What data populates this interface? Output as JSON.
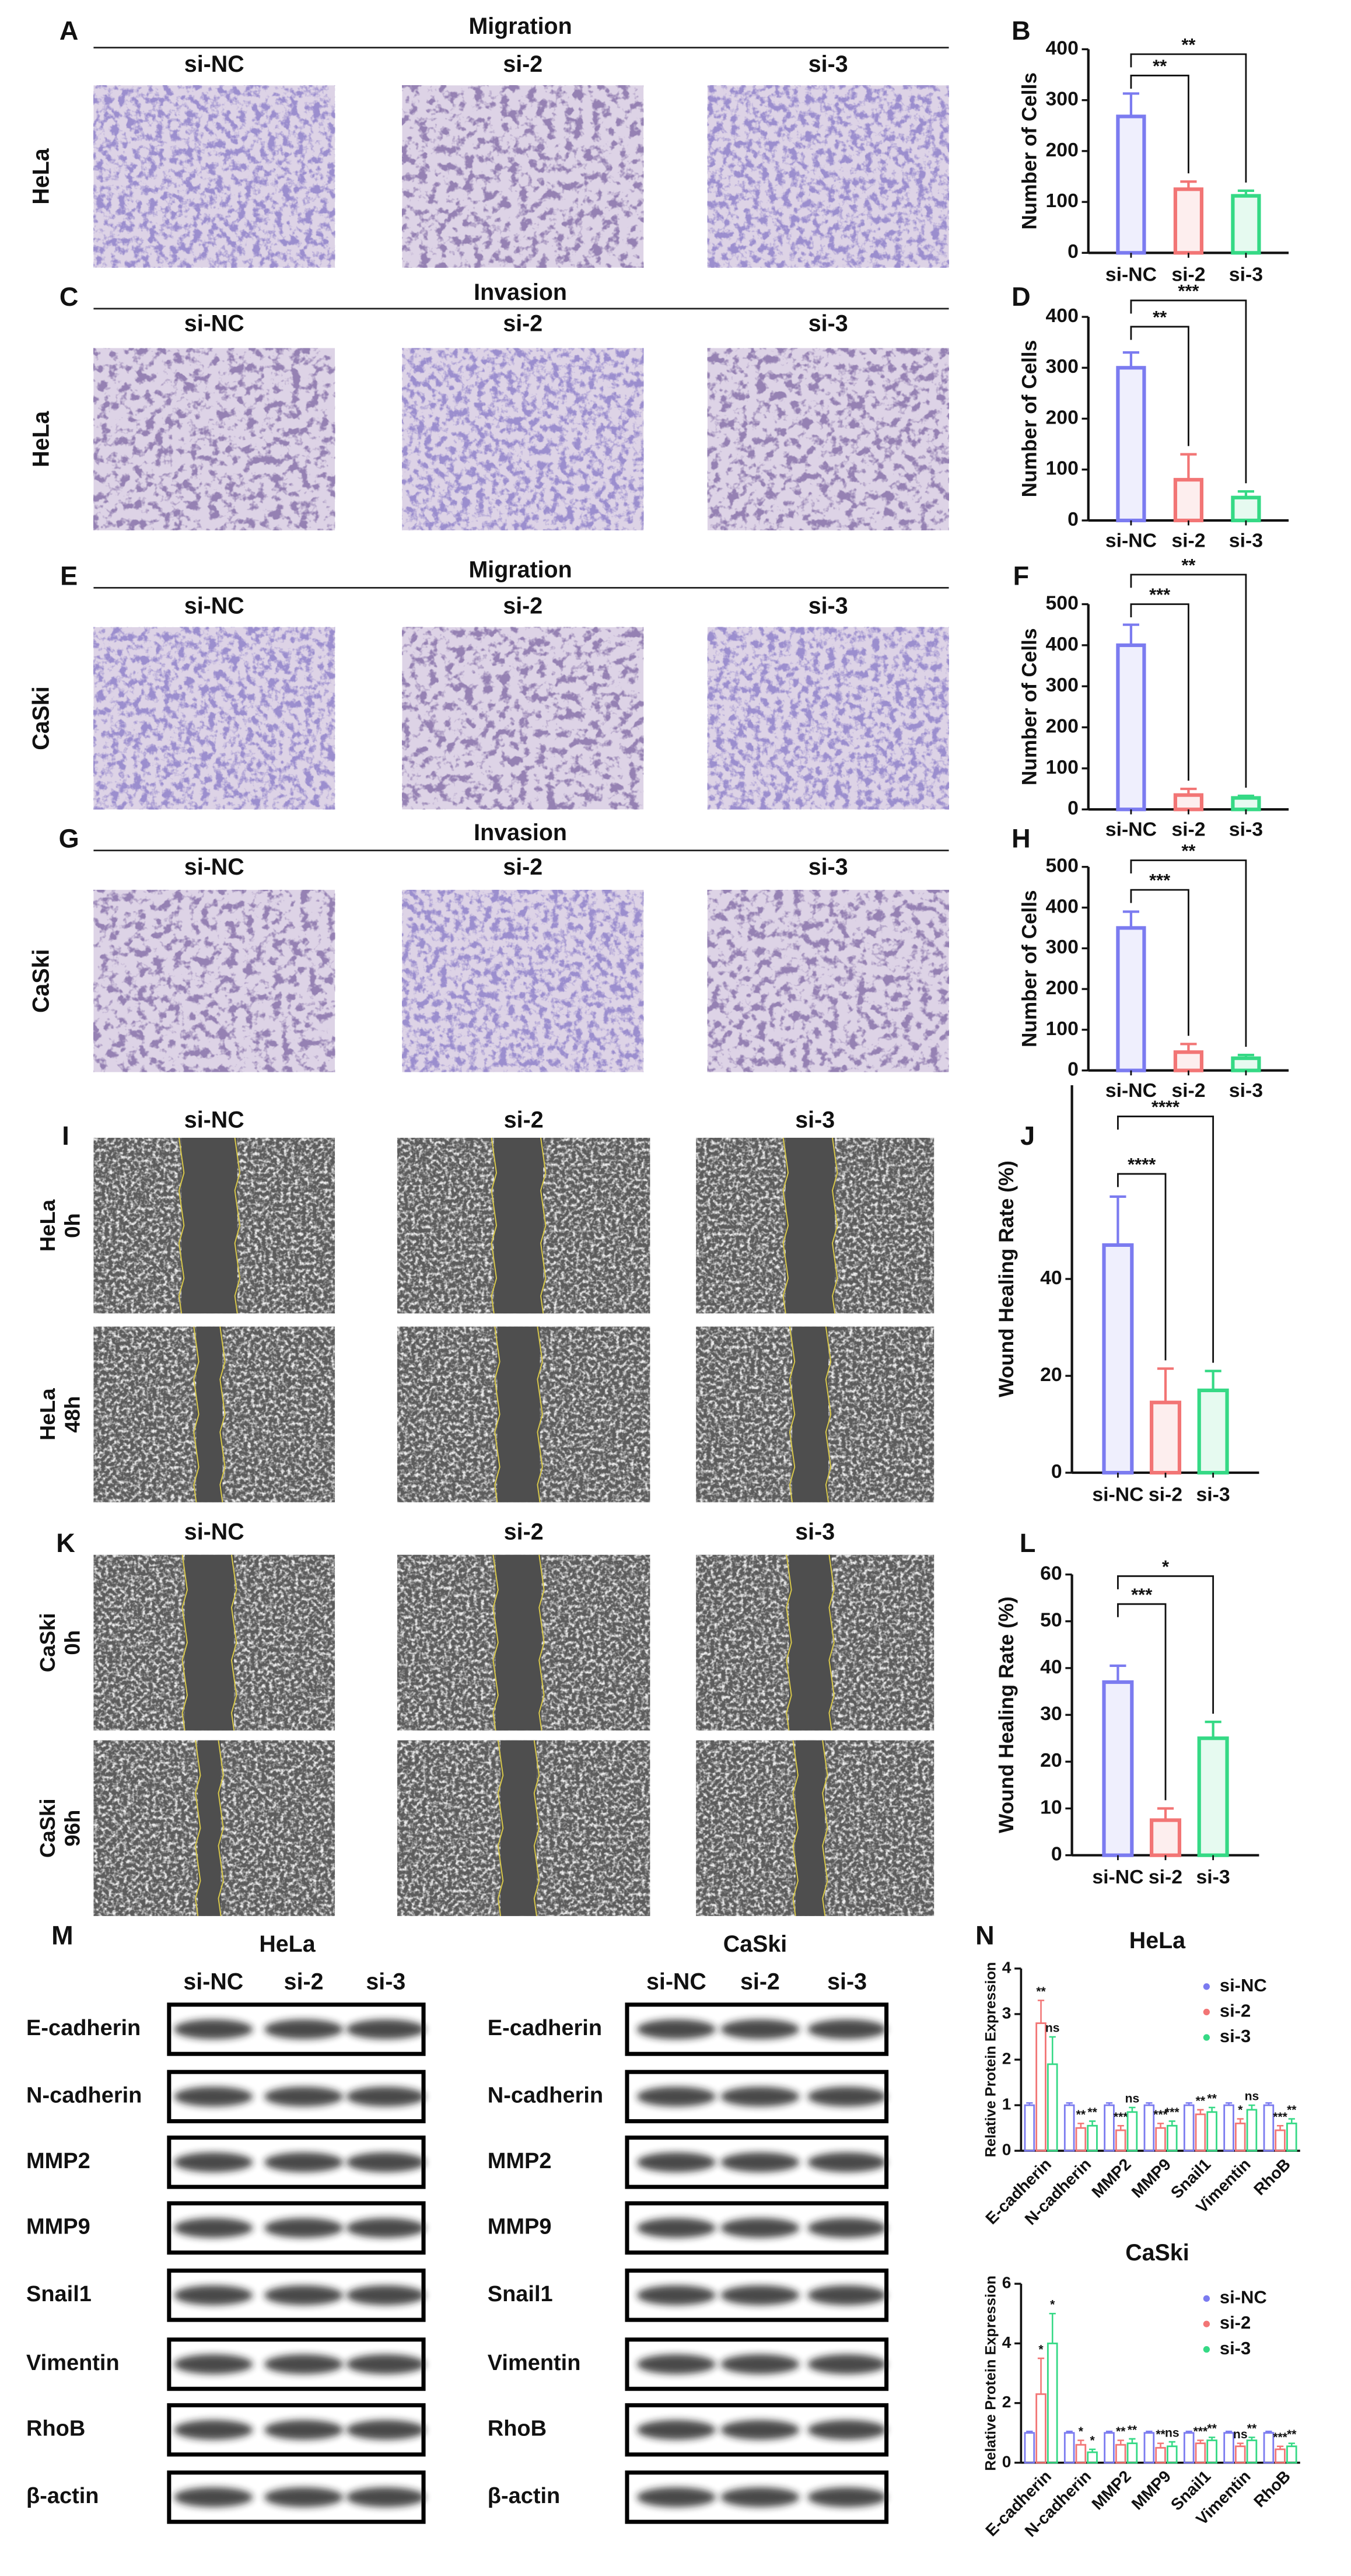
{
  "panel_labels": [
    "A",
    "B",
    "C",
    "D",
    "E",
    "F",
    "G",
    "H",
    "I",
    "J",
    "K",
    "L",
    "M",
    "N"
  ],
  "transwell": [
    {
      "title": "Migration",
      "cell_line": "HeLa",
      "columns": [
        "si-NC",
        "si-2",
        "si-3"
      ]
    },
    {
      "title": "Invasion",
      "cell_line": "HeLa",
      "columns": [
        "si-NC",
        "si-2",
        "si-3"
      ]
    },
    {
      "title": "Migration",
      "cell_line": "CaSki",
      "columns": [
        "si-NC",
        "si-2",
        "si-3"
      ]
    },
    {
      "title": "Invasion",
      "cell_line": "CaSki",
      "columns": [
        "si-NC",
        "si-2",
        "si-3"
      ]
    }
  ],
  "wound": [
    {
      "columns": [
        "si-NC",
        "si-2",
        "si-3"
      ],
      "rows": [
        [
          "HeLa",
          "0h"
        ],
        [
          "HeLa",
          "48h"
        ]
      ]
    },
    {
      "columns": [
        "si-NC",
        "si-2",
        "si-3"
      ],
      "rows": [
        [
          "CaSki",
          "0h"
        ],
        [
          "CaSki",
          "96h"
        ]
      ]
    }
  ],
  "western": [
    {
      "cell_line": "HeLa",
      "columns": [
        "si-NC",
        "si-2",
        "si-3"
      ],
      "proteins": [
        "E-cadherin",
        "N-cadherin",
        "MMP2",
        "MMP9",
        "Snail1",
        "Vimentin",
        "RhoB",
        "β-actin"
      ]
    },
    {
      "cell_line": "CaSki",
      "columns": [
        "si-NC",
        "si-2",
        "si-3"
      ],
      "proteins": [
        "E-cadherin",
        "N-cadherin",
        "MMP2",
        "MMP9",
        "Snail1",
        "Vimentin",
        "RhoB",
        "β-actin"
      ]
    }
  ],
  "chart_data": [
    {
      "type": "bar",
      "ylabel": "Number of Cells",
      "categories": [
        "si-NC",
        "si-2",
        "si-3"
      ],
      "values": [
        268,
        125,
        112
      ],
      "errors": [
        45,
        15,
        10
      ],
      "colors": [
        "#7b7bf0",
        "#f27575",
        "#35d985"
      ],
      "ylim": [
        0,
        400
      ],
      "yticks": [
        0,
        100,
        200,
        300,
        400
      ],
      "significance": [
        "**",
        "**"
      ]
    },
    {
      "type": "bar",
      "ylabel": "Number of Cells",
      "categories": [
        "si-NC",
        "si-2",
        "si-3"
      ],
      "values": [
        300,
        80,
        45
      ],
      "errors": [
        30,
        50,
        12
      ],
      "colors": [
        "#7b7bf0",
        "#f27575",
        "#35d985"
      ],
      "ylim": [
        0,
        400
      ],
      "yticks": [
        0,
        100,
        200,
        300,
        400
      ],
      "significance": [
        "**",
        "***"
      ]
    },
    {
      "type": "bar",
      "ylabel": "Number of Cells",
      "categories": [
        "si-NC",
        "si-2",
        "si-3"
      ],
      "values": [
        400,
        35,
        28
      ],
      "errors": [
        50,
        15,
        5
      ],
      "colors": [
        "#7b7bf0",
        "#f27575",
        "#35d985"
      ],
      "ylim": [
        0,
        500
      ],
      "yticks": [
        0,
        100,
        200,
        300,
        400,
        500
      ],
      "significance": [
        "***",
        "**"
      ]
    },
    {
      "type": "bar",
      "ylabel": "Number of Cells",
      "categories": [
        "si-NC",
        "si-2",
        "si-3"
      ],
      "values": [
        350,
        45,
        30
      ],
      "errors": [
        40,
        20,
        8
      ],
      "colors": [
        "#7b7bf0",
        "#f27575",
        "#35d985"
      ],
      "ylim": [
        0,
        500
      ],
      "yticks": [
        0,
        100,
        200,
        300,
        400,
        500
      ],
      "significance": [
        "***",
        "**"
      ]
    },
    {
      "type": "bar",
      "ylabel": "Wound Healing Rate (%)",
      "categories": [
        "si-NC",
        "si-2",
        "si-3"
      ],
      "values": [
        47,
        14.5,
        17
      ],
      "errors": [
        10,
        7,
        4
      ],
      "colors": [
        "#7b7bf0",
        "#f27575",
        "#35d985"
      ],
      "ylim": [
        0,
        80
      ],
      "yticks": [
        0,
        20,
        40
      ],
      "significance": [
        "****",
        "****"
      ]
    },
    {
      "type": "bar",
      "ylabel": "Wound Healing Rate (%)",
      "categories": [
        "si-NC",
        "si-2",
        "si-3"
      ],
      "values": [
        37,
        7.5,
        25
      ],
      "errors": [
        3.5,
        2.5,
        3.5
      ],
      "colors": [
        "#7b7bf0",
        "#f27575",
        "#35d985"
      ],
      "ylim": [
        0,
        60
      ],
      "yticks": [
        0,
        10,
        20,
        30,
        40,
        50,
        60
      ],
      "significance": [
        "***",
        "*"
      ]
    },
    {
      "type": "grouped_bar",
      "title": "HeLa",
      "ylabel": "Relative Protein Expression",
      "categories": [
        "E-cadherin",
        "N-cadherin",
        "MMP2",
        "MMP9",
        "Snail1",
        "Vimentin",
        "RhoB"
      ],
      "ylim": [
        0,
        4
      ],
      "yticks": [
        0,
        1,
        2,
        3,
        4
      ],
      "legend": "upper right",
      "series": [
        {
          "name": "si-NC",
          "color": "#7b7bf0",
          "values": [
            1,
            1,
            1,
            1,
            1,
            1,
            1
          ],
          "errors": [
            0.05,
            0.05,
            0.05,
            0.05,
            0.05,
            0.05,
            0.05
          ]
        },
        {
          "name": "si-2",
          "color": "#f27575",
          "values": [
            2.8,
            0.5,
            0.45,
            0.5,
            0.8,
            0.6,
            0.45
          ],
          "errors": [
            0.5,
            0.1,
            0.1,
            0.1,
            0.1,
            0.1,
            0.1
          ],
          "significance": [
            "**",
            "**",
            "***",
            "***",
            "**",
            "*",
            "***"
          ]
        },
        {
          "name": "si-3",
          "color": "#35d985",
          "values": [
            1.9,
            0.55,
            0.85,
            0.55,
            0.85,
            0.9,
            0.6
          ],
          "errors": [
            0.6,
            0.1,
            0.1,
            0.1,
            0.1,
            0.1,
            0.1
          ],
          "significance": [
            "ns",
            "**",
            "ns",
            "***",
            "**",
            "ns",
            "**"
          ]
        }
      ]
    },
    {
      "type": "grouped_bar",
      "title": "CaSki",
      "ylabel": "Relative Protein Expression",
      "categories": [
        "E-cadherin",
        "N-cadherin",
        "MMP2",
        "MMP9",
        "Snail1",
        "Vimentin",
        "RhoB"
      ],
      "ylim": [
        0,
        6
      ],
      "yticks": [
        0,
        2,
        4,
        6
      ],
      "legend": "upper right",
      "series": [
        {
          "name": "si-NC",
          "color": "#7b7bf0",
          "values": [
            1,
            1,
            1,
            1,
            1,
            1,
            1
          ],
          "errors": [
            0.05,
            0.05,
            0.05,
            0.05,
            0.05,
            0.05,
            0.05
          ]
        },
        {
          "name": "si-2",
          "color": "#f27575",
          "values": [
            2.3,
            0.6,
            0.6,
            0.5,
            0.65,
            0.55,
            0.45
          ],
          "errors": [
            1.2,
            0.15,
            0.15,
            0.15,
            0.1,
            0.1,
            0.1
          ],
          "significance": [
            "*",
            "*",
            "**",
            "**",
            "***",
            "ns",
            "***"
          ]
        },
        {
          "name": "si-3",
          "color": "#35d985",
          "values": [
            4.0,
            0.35,
            0.65,
            0.55,
            0.75,
            0.75,
            0.55
          ],
          "errors": [
            1.0,
            0.1,
            0.15,
            0.15,
            0.1,
            0.1,
            0.1
          ],
          "significance": [
            "*",
            "*",
            "**",
            "ns",
            "**",
            "**",
            "**"
          ]
        }
      ]
    }
  ]
}
